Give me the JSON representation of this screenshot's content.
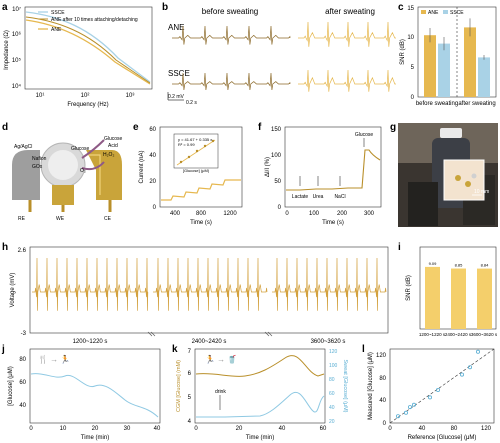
{
  "colors": {
    "ane": "#e6b84f",
    "ssce": "#a9d2e6",
    "ane_dark": "#b98f2a",
    "ecg": "#d3a13e",
    "trace_dark": "#8c6a2a",
    "blue_line": "#8fc9e3"
  },
  "panels": {
    "a": {
      "label": "a",
      "ylabel": "Impedance (Ω)",
      "xlabel": "Frequency (Hz)",
      "legend": [
        "SSCE",
        "ANE after 10 times attaching/detaching",
        "ANE"
      ],
      "yticks": [
        "10⁴",
        "10⁵",
        "10⁶",
        "10⁷"
      ],
      "xticks": [
        "10¹",
        "10²",
        "10³"
      ]
    },
    "b": {
      "label": "b",
      "before": "before sweating",
      "after": "after sweating",
      "row1": "ANE",
      "row2": "SSCE",
      "scale_v": "0.2 mV",
      "scale_t": "0.2 s"
    },
    "c": {
      "label": "c",
      "ylabel": "SNR (dB)",
      "legend": [
        "ANE",
        "SSCE"
      ],
      "groups": [
        "before sweating",
        "after sweating"
      ],
      "yticks": [
        "0",
        "5",
        "10",
        "15"
      ]
    },
    "d": {
      "label": "d",
      "labels": {
        "agagcl": "Ag/AgCl",
        "nafion": "Nafion",
        "gox": "GOx",
        "glucose": "Glucose",
        "acid": "Acid",
        "h2o2": "H₂O₂",
        "o2": "O₂",
        "glucose2": "Glucose",
        "re": "RE",
        "we": "WE",
        "ce": "CE"
      }
    },
    "e": {
      "label": "e",
      "ylabel": "Current (nA)",
      "xlabel": "Time (s)",
      "xticks": [
        "400",
        "800",
        "1200"
      ],
      "yticks": [
        "0",
        "20",
        "40",
        "60"
      ],
      "inset_eq": "y = 41.67 + 0.335 x",
      "inset_r2": "R² = 0.99",
      "inset_x": "[Glucose] (μM)",
      "inset_y": "Current (nA)"
    },
    "f": {
      "label": "f",
      "ylabel": "ΔI/I (%)",
      "xlabel": "Time (s)",
      "xticks": [
        "0",
        "100",
        "200",
        "300"
      ],
      "yticks": [
        "0",
        "50",
        "100",
        "150"
      ],
      "annotations": [
        "Lactate",
        "Urea",
        "NaCl",
        "Glucose"
      ]
    },
    "g": {
      "label": "g",
      "scale": "10 mm"
    },
    "h": {
      "label": "h",
      "ylabel": "Voltage (mV)",
      "ytop": "2.6",
      "ybot": "-3",
      "segments": [
        "1200~1220 s",
        "2400~2420 s",
        "3600~3620 s"
      ]
    },
    "i": {
      "label": "i",
      "ylabel": "SNR (dB)",
      "values_text": [
        "9.09",
        "8.85",
        "8.84"
      ],
      "categories": [
        "1200~1220 s",
        "2400~2420 s",
        "3600~3620 s"
      ]
    },
    "j": {
      "label": "j",
      "ylabel": "[Glucose] (μM)",
      "xlabel": "Time (min)",
      "xticks": [
        "0",
        "10",
        "20",
        "30",
        "40"
      ],
      "yticks": [
        "40",
        "60",
        "80"
      ]
    },
    "k": {
      "label": "k",
      "ylabel_left": "CGM [Glucose] (mM)",
      "ylabel_right": "Sweat [Glucose] (μM)",
      "xlabel": "Time (min)",
      "xticks": [
        "0",
        "20",
        "40",
        "60"
      ],
      "yticks_left": [
        "4",
        "5",
        "6",
        "7"
      ],
      "yticks_right": [
        "20",
        "40",
        "60",
        "80",
        "100",
        "120"
      ],
      "annotation": "drink"
    },
    "l": {
      "label": "l",
      "ylabel": "Measured [Glucose] (μM)",
      "xlabel": "Reference [Glucose] (μM)",
      "xticks": [
        "0",
        "40",
        "80",
        "120"
      ],
      "yticks": [
        "0",
        "40",
        "80",
        "120"
      ]
    }
  },
  "chart_data": [
    {
      "type": "bar",
      "panel": "c",
      "categories": [
        "before sweating",
        "after sweating"
      ],
      "series": [
        {
          "name": "ANE",
          "values": [
            10.3,
            11.6
          ]
        },
        {
          "name": "SSCE",
          "values": [
            8.9,
            6.6
          ]
        }
      ],
      "ylim": [
        0,
        15
      ]
    },
    {
      "type": "bar",
      "panel": "i",
      "categories": [
        "1200~1220 s",
        "2400~2420 s",
        "3600~3620 s"
      ],
      "values": [
        9.09,
        8.85,
        8.84
      ],
      "ylim": [
        0,
        12
      ]
    },
    {
      "type": "scatter",
      "panel": "l",
      "x": [
        10,
        20,
        25,
        30,
        50,
        60,
        90,
        100,
        110
      ],
      "y": [
        12,
        18,
        28,
        32,
        45,
        58,
        85,
        98,
        125
      ],
      "xlim": [
        0,
        130
      ],
      "ylim": [
        0,
        130
      ]
    }
  ]
}
